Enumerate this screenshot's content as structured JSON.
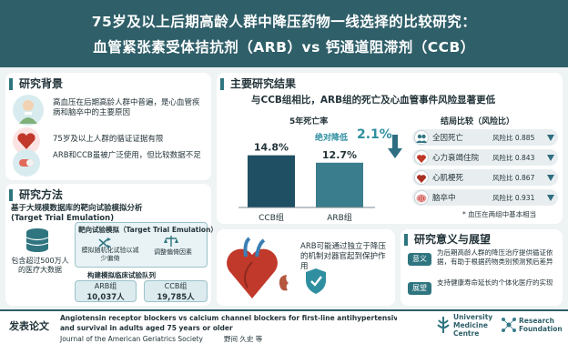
{
  "header": {
    "title_line1": "75岁及以上后期高龄人群中降压药物一线选择的比较研究：",
    "title_line2": "血管紧张素受体拮抗剂（ARB）vs 钙通道阻滞剂（CCB）"
  },
  "background": {
    "title": "研究背景",
    "items": [
      {
        "text": "高血压在后期高龄人群中普遍，是心血管疾病和脑卒中的主要原因",
        "icon": "elderly-person-icon"
      },
      {
        "text": "75岁及以上人群的循证证据有限",
        "icon": "heart-icon"
      },
      {
        "text": "ARB和CCB虽被广泛使用，但比较数据不足",
        "icon": "pills-icon"
      }
    ]
  },
  "methods": {
    "title": "研究方法",
    "intro": "基于大规模数据库的靶向试验模拟分析",
    "intro_en": "(Target Trial Emulation)",
    "database_label": "包含超过500万人的医疗大数据",
    "tte_label": "靶向试验模拟（Target Trial Emulation）",
    "step1": "模拟随机化试验以减少偏倚",
    "step2": "调整偏倚因素",
    "cohort_label": "构建模拟临床试验队列",
    "arb_label": "ARB组",
    "arb_count": "10,037人",
    "ccb_label": "CCB组",
    "ccb_count": "19,785人"
  },
  "results": {
    "title": "主要研究结果",
    "subtitle": "与CCB组相比，ARB组的死亡及心血管事件风险显著更低",
    "mortality_title": "5年死亡率",
    "abs_reduction_label": "绝对降低",
    "abs_reduction_value": "2.1%",
    "mechanism": "ARB可能通过独立于降压的机制对器官起到保护作用"
  },
  "chart_data": {
    "type": "bar",
    "title": "5年死亡率",
    "categories": [
      "CCB组",
      "ARB组"
    ],
    "values": [
      14.8,
      12.7
    ],
    "value_labels": [
      "14.8%",
      "12.7%"
    ],
    "colors": [
      "#1f4f63",
      "#3a7d8c"
    ]
  },
  "risk": {
    "title": "结局比较（风险比）",
    "rows": [
      {
        "label": "全因死亡",
        "hr": "风险比 0.885",
        "icon": "people-icon"
      },
      {
        "label": "心力衰竭住院",
        "hr": "风险比 0.843",
        "icon": "heart-icon"
      },
      {
        "label": "心肌梗死",
        "hr": "风险比 0.867",
        "icon": "heart-icon"
      },
      {
        "label": "脑卒中",
        "hr": "风险比 0.931",
        "icon": "brain-icon"
      }
    ],
    "footnote": "* 血压在两组中基本相当"
  },
  "significance": {
    "title": "研究意义与展望",
    "items": [
      {
        "tag": "意义",
        "text": "为后期高龄人群的降压治疗提供循证依据，有助于根据药物类别预测预后差异"
      },
      {
        "tag": "展望",
        "text": "支持健康寿命延长的个体化医疗的实现"
      }
    ]
  },
  "footer": {
    "label": "发表论文",
    "paper_title_1": "Angiotensin receptor blockers vs calcium channel blockers for first-line antihypertensive therapy",
    "paper_title_2": "and survival in adults aged 75 years or older",
    "journal": "Journal of the American Geriatrics Society",
    "author": "野间 久史 等",
    "logo1_line1": "University",
    "logo1_line2": "Medicine",
    "logo1_line3": "Centre",
    "logo2_line1": "Research",
    "logo2_line2": "Foundation"
  },
  "colors": {
    "primary": "#2f5f69",
    "accent": "#2f7580",
    "highlight": "#2f8fa0",
    "red": "#c0392b"
  }
}
